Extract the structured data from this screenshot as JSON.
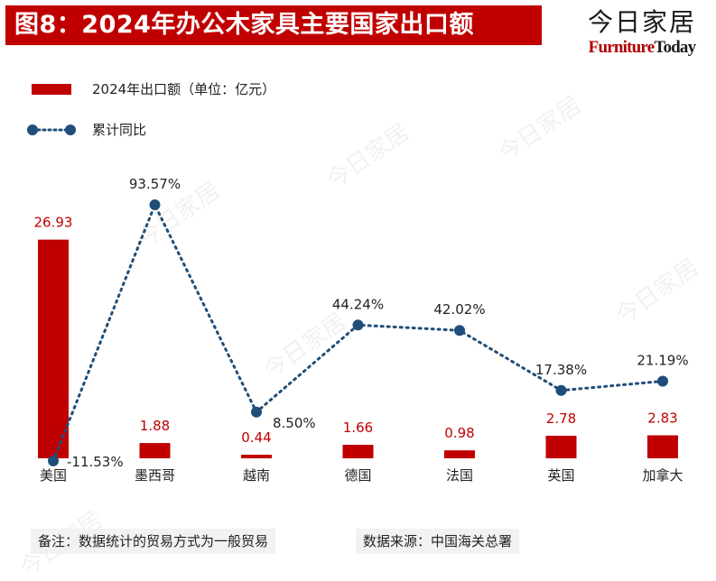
{
  "title": "图8：2024年办公木家具主要国家出口额",
  "brand": {
    "cn": "今日家居",
    "en_part1": "Furniture",
    "en_part2": "Today"
  },
  "legend": {
    "bar_label": "2024年出口额（单位：亿元）",
    "line_label": "累计同比"
  },
  "footnote_left": "备注：数据统计的贸易方式为一般贸易",
  "footnote_right": "数据来源：中国海关总署",
  "colors": {
    "bar": "#c00000",
    "line": "#1f4e79",
    "title_bg": "#c00000"
  },
  "chart_data": {
    "type": "bar",
    "categories": [
      "美国",
      "墨西哥",
      "越南",
      "德国",
      "法国",
      "英国",
      "加拿大"
    ],
    "series": [
      {
        "name": "2024年出口额（单位：亿元）",
        "type": "bar",
        "values": [
          26.93,
          1.88,
          0.44,
          1.66,
          0.98,
          2.78,
          2.83
        ],
        "labels": [
          "26.93",
          "1.88",
          "0.44",
          "1.66",
          "0.98",
          "2.78",
          "2.83"
        ]
      },
      {
        "name": "累计同比",
        "type": "line",
        "style": "dotted",
        "unit": "%",
        "values": [
          -11.53,
          93.57,
          8.5,
          44.24,
          42.02,
          17.38,
          21.19
        ],
        "labels": [
          "-11.53%",
          "93.57%",
          "8.50%",
          "44.24%",
          "42.02%",
          "17.38%",
          "21.19%"
        ]
      }
    ],
    "grid": false,
    "legend_position": "top-left"
  }
}
